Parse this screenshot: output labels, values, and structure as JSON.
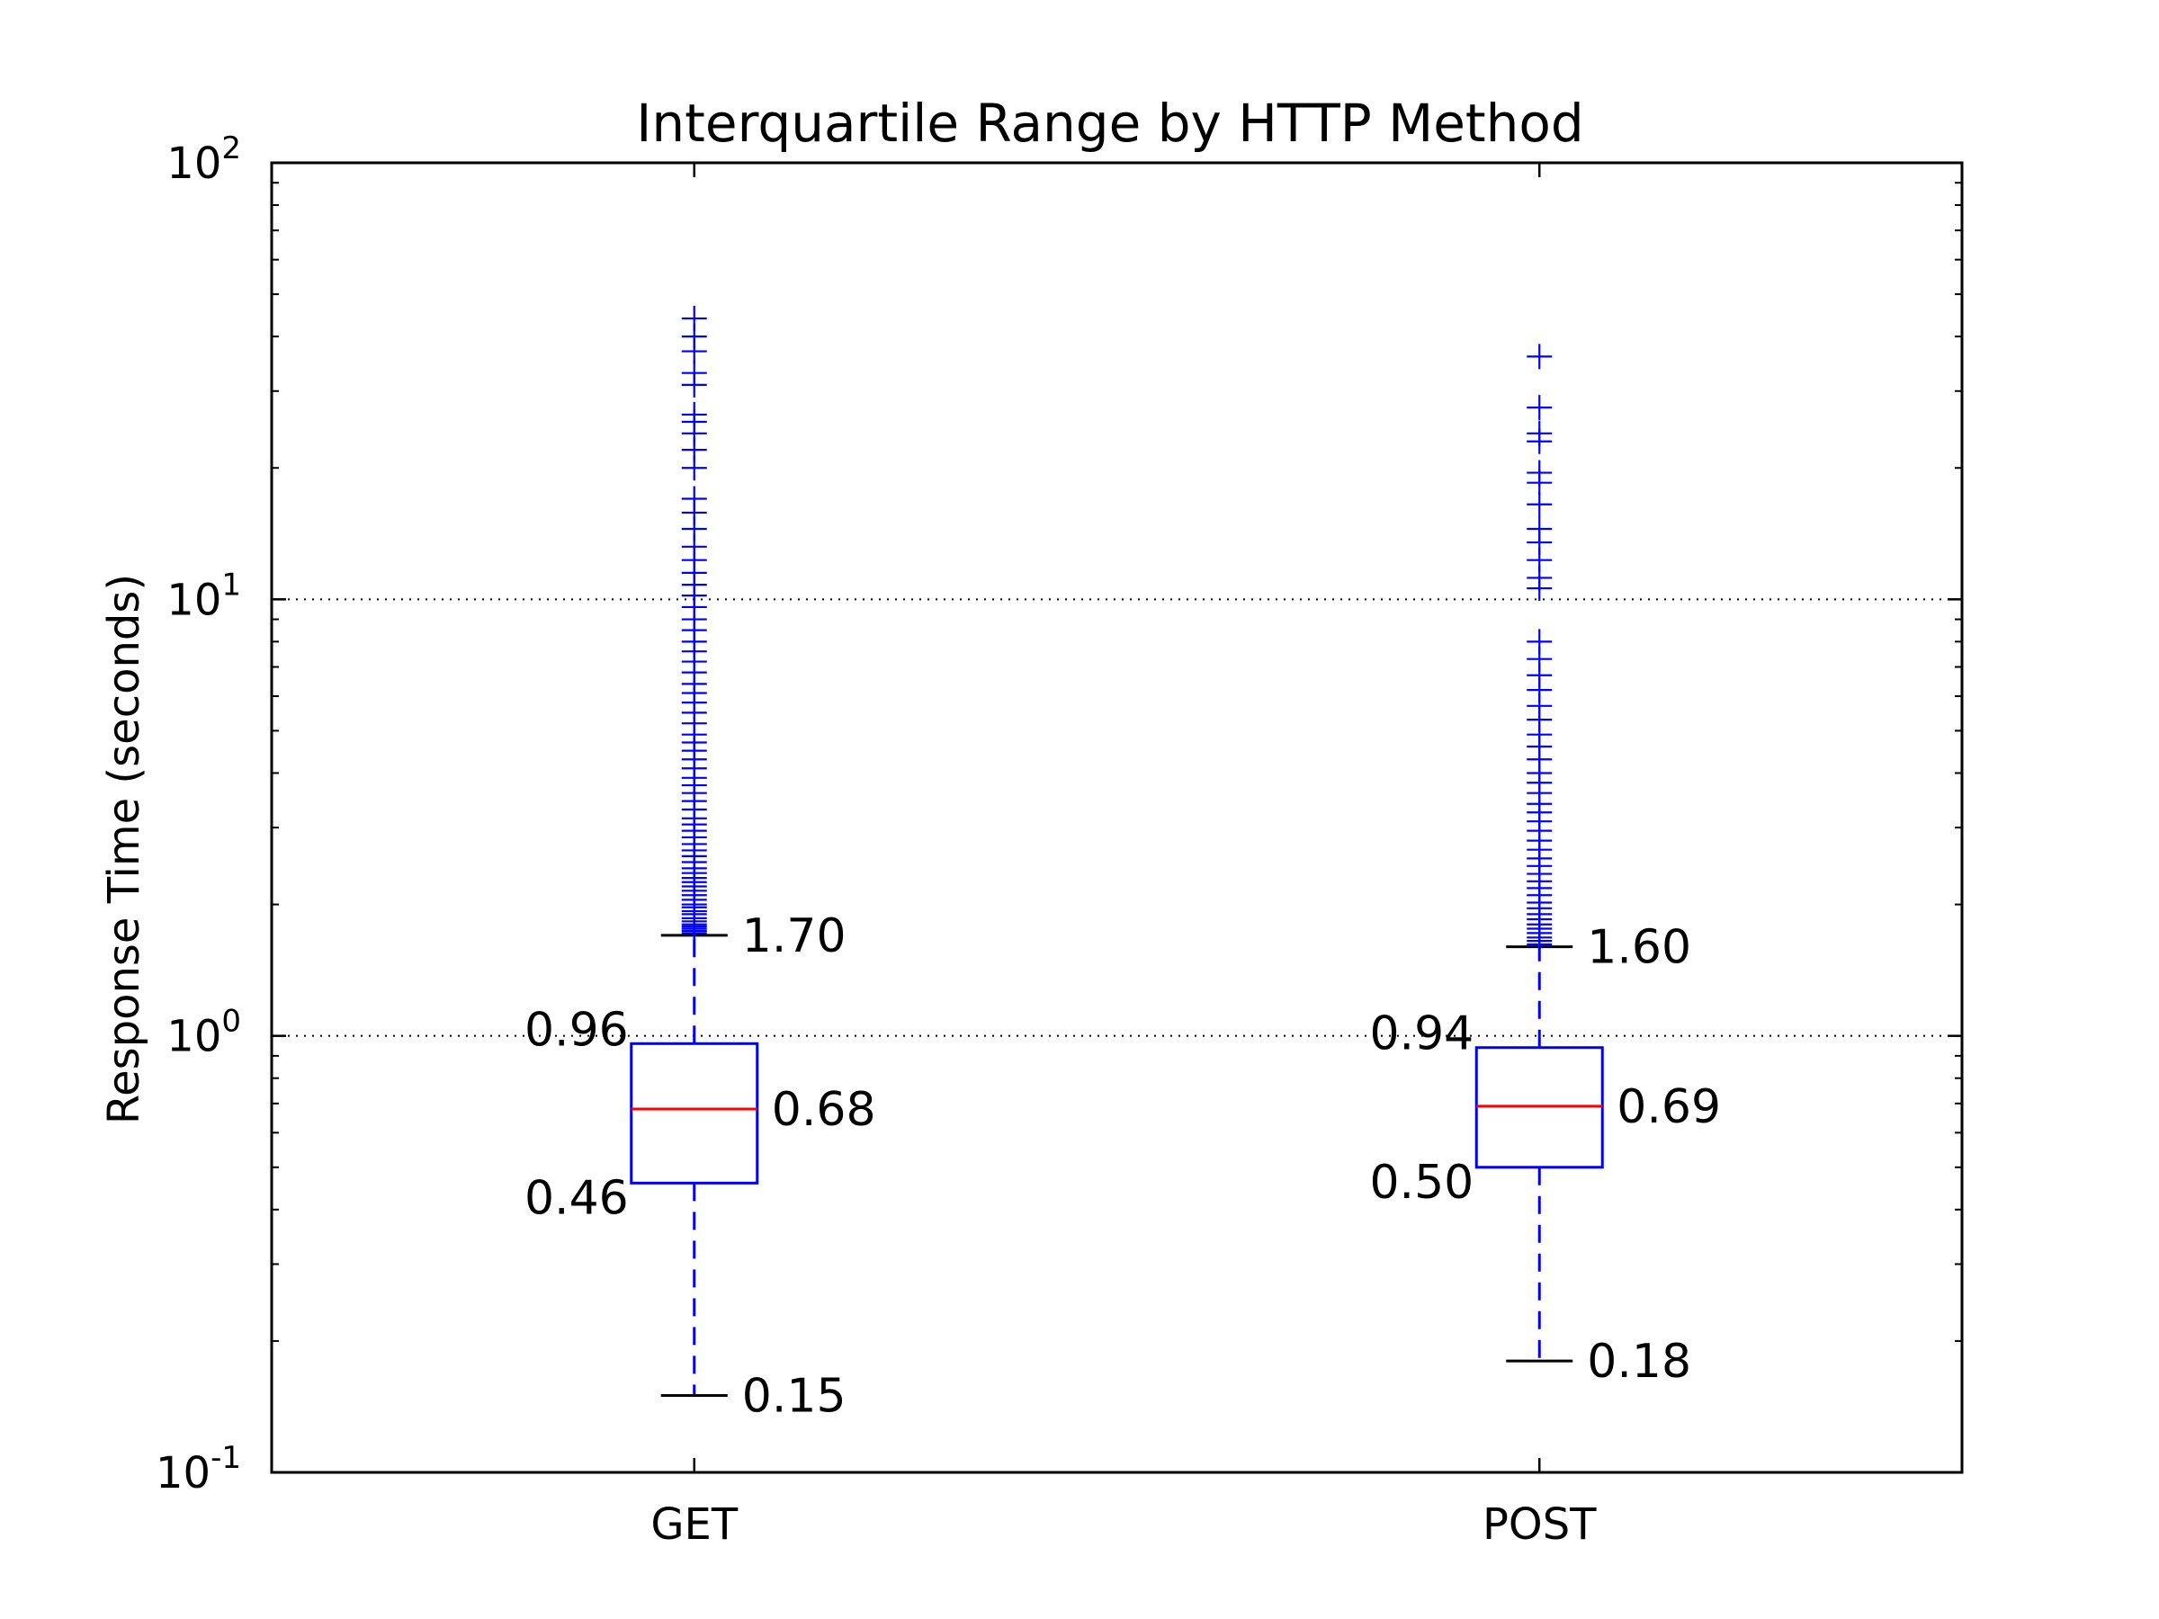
{
  "chart_data": {
    "type": "box",
    "title": "Interquartile Range by HTTP Method",
    "xlabel": "",
    "ylabel": "Response Time (seconds)",
    "yscale": "log",
    "ylim": [
      0.1,
      100
    ],
    "grid": "horizontal dotted at decades",
    "y_ticks": [
      {
        "value": 0.1,
        "base": "10",
        "exp": "-1"
      },
      {
        "value": 1,
        "base": "10",
        "exp": "0"
      },
      {
        "value": 10,
        "base": "10",
        "exp": "1"
      },
      {
        "value": 100,
        "base": "10",
        "exp": "2"
      }
    ],
    "categories": [
      "GET",
      "POST"
    ],
    "boxes": [
      {
        "name": "GET",
        "whisker_low": 0.15,
        "q1": 0.46,
        "median": 0.68,
        "q3": 0.96,
        "whisker_high": 1.7,
        "labels": {
          "whisker_low": "0.15",
          "q1": "0.46",
          "median": "0.68",
          "q3": "0.96",
          "whisker_high": "1.70"
        },
        "outliers": [
          1.72,
          1.74,
          1.76,
          1.78,
          1.8,
          1.83,
          1.86,
          1.9,
          1.93,
          1.97,
          2.0,
          2.05,
          2.1,
          2.15,
          2.2,
          2.25,
          2.3,
          2.36,
          2.42,
          2.5,
          2.58,
          2.66,
          2.75,
          2.85,
          2.95,
          3.05,
          3.15,
          3.3,
          3.45,
          3.6,
          3.75,
          3.9,
          4.1,
          4.3,
          4.5,
          4.7,
          4.9,
          5.2,
          5.5,
          5.8,
          6.1,
          6.4,
          6.8,
          7.2,
          7.6,
          8.0,
          8.5,
          9.0,
          9.6,
          10.2,
          10.8,
          11.5,
          12.3,
          13.2,
          14.5,
          15.8,
          17.0,
          20.0,
          22.0,
          24.0,
          25.5,
          26.5,
          31.0,
          33.0,
          37.0,
          40.0,
          44.0
        ]
      },
      {
        "name": "POST",
        "whisker_low": 0.18,
        "q1": 0.5,
        "median": 0.69,
        "q3": 0.94,
        "whisker_high": 1.6,
        "labels": {
          "whisker_low": "0.18",
          "q1": "0.50",
          "median": "0.69",
          "q3": "0.94",
          "whisker_high": "1.60"
        },
        "outliers": [
          1.62,
          1.65,
          1.68,
          1.72,
          1.76,
          1.8,
          1.85,
          1.9,
          1.96,
          2.02,
          2.1,
          2.18,
          2.26,
          2.35,
          2.45,
          2.55,
          2.67,
          2.8,
          2.95,
          3.1,
          3.25,
          3.4,
          3.6,
          3.8,
          4.0,
          4.3,
          4.6,
          4.9,
          5.3,
          5.7,
          6.2,
          6.7,
          7.3,
          8.0,
          10.6,
          11.2,
          12.3,
          13.5,
          14.5,
          16.5,
          18.5,
          19.5,
          23.0,
          24.0,
          27.5,
          36.0
        ]
      }
    ],
    "colors": {
      "box": "#0000ff",
      "median": "#ff0000",
      "whisker_cap": "#000000",
      "grid": "#000000"
    }
  }
}
